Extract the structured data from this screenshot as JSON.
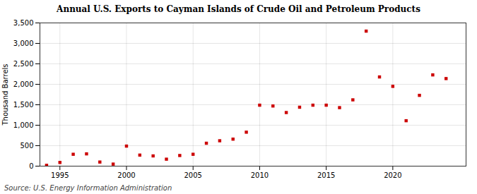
{
  "chart_data": {
    "type": "scatter",
    "title": "Annual U.S. Exports to Cayman Islands of Crude Oil and Petroleum Products",
    "ylabel": "Thousand Barrels",
    "source": "Source: U.S. Energy Information Administration",
    "x": [
      1994,
      1995,
      1996,
      1997,
      1998,
      1999,
      2000,
      2001,
      2002,
      2003,
      2004,
      2005,
      2006,
      2007,
      2008,
      2009,
      2010,
      2011,
      2012,
      2013,
      2014,
      2015,
      2016,
      2017,
      2018,
      2019,
      2020,
      2021,
      2022,
      2023,
      2024
    ],
    "values": [
      20,
      90,
      290,
      300,
      100,
      50,
      490,
      270,
      250,
      170,
      260,
      290,
      560,
      620,
      660,
      830,
      1490,
      1470,
      1310,
      1440,
      1490,
      1490,
      1430,
      1620,
      3300,
      2180,
      1950,
      1110,
      1730,
      2230,
      2140
    ],
    "color": "#cc0000",
    "marker": "square",
    "xlim": [
      1993.5,
      2025.5
    ],
    "xticks": [
      1995,
      2000,
      2005,
      2010,
      2015,
      2020
    ],
    "ylim": [
      0,
      3500
    ],
    "yticks": [
      0,
      500,
      {
        "value": 1000,
        "label": "1,000"
      },
      {
        "value": 1500,
        "label": "1,500"
      },
      {
        "value": 2000,
        "label": "2,000"
      },
      {
        "value": 2500,
        "label": "2,500"
      },
      {
        "value": 3000,
        "label": "3,000"
      },
      {
        "value": 3500,
        "label": "3,500"
      }
    ],
    "grid": true
  }
}
